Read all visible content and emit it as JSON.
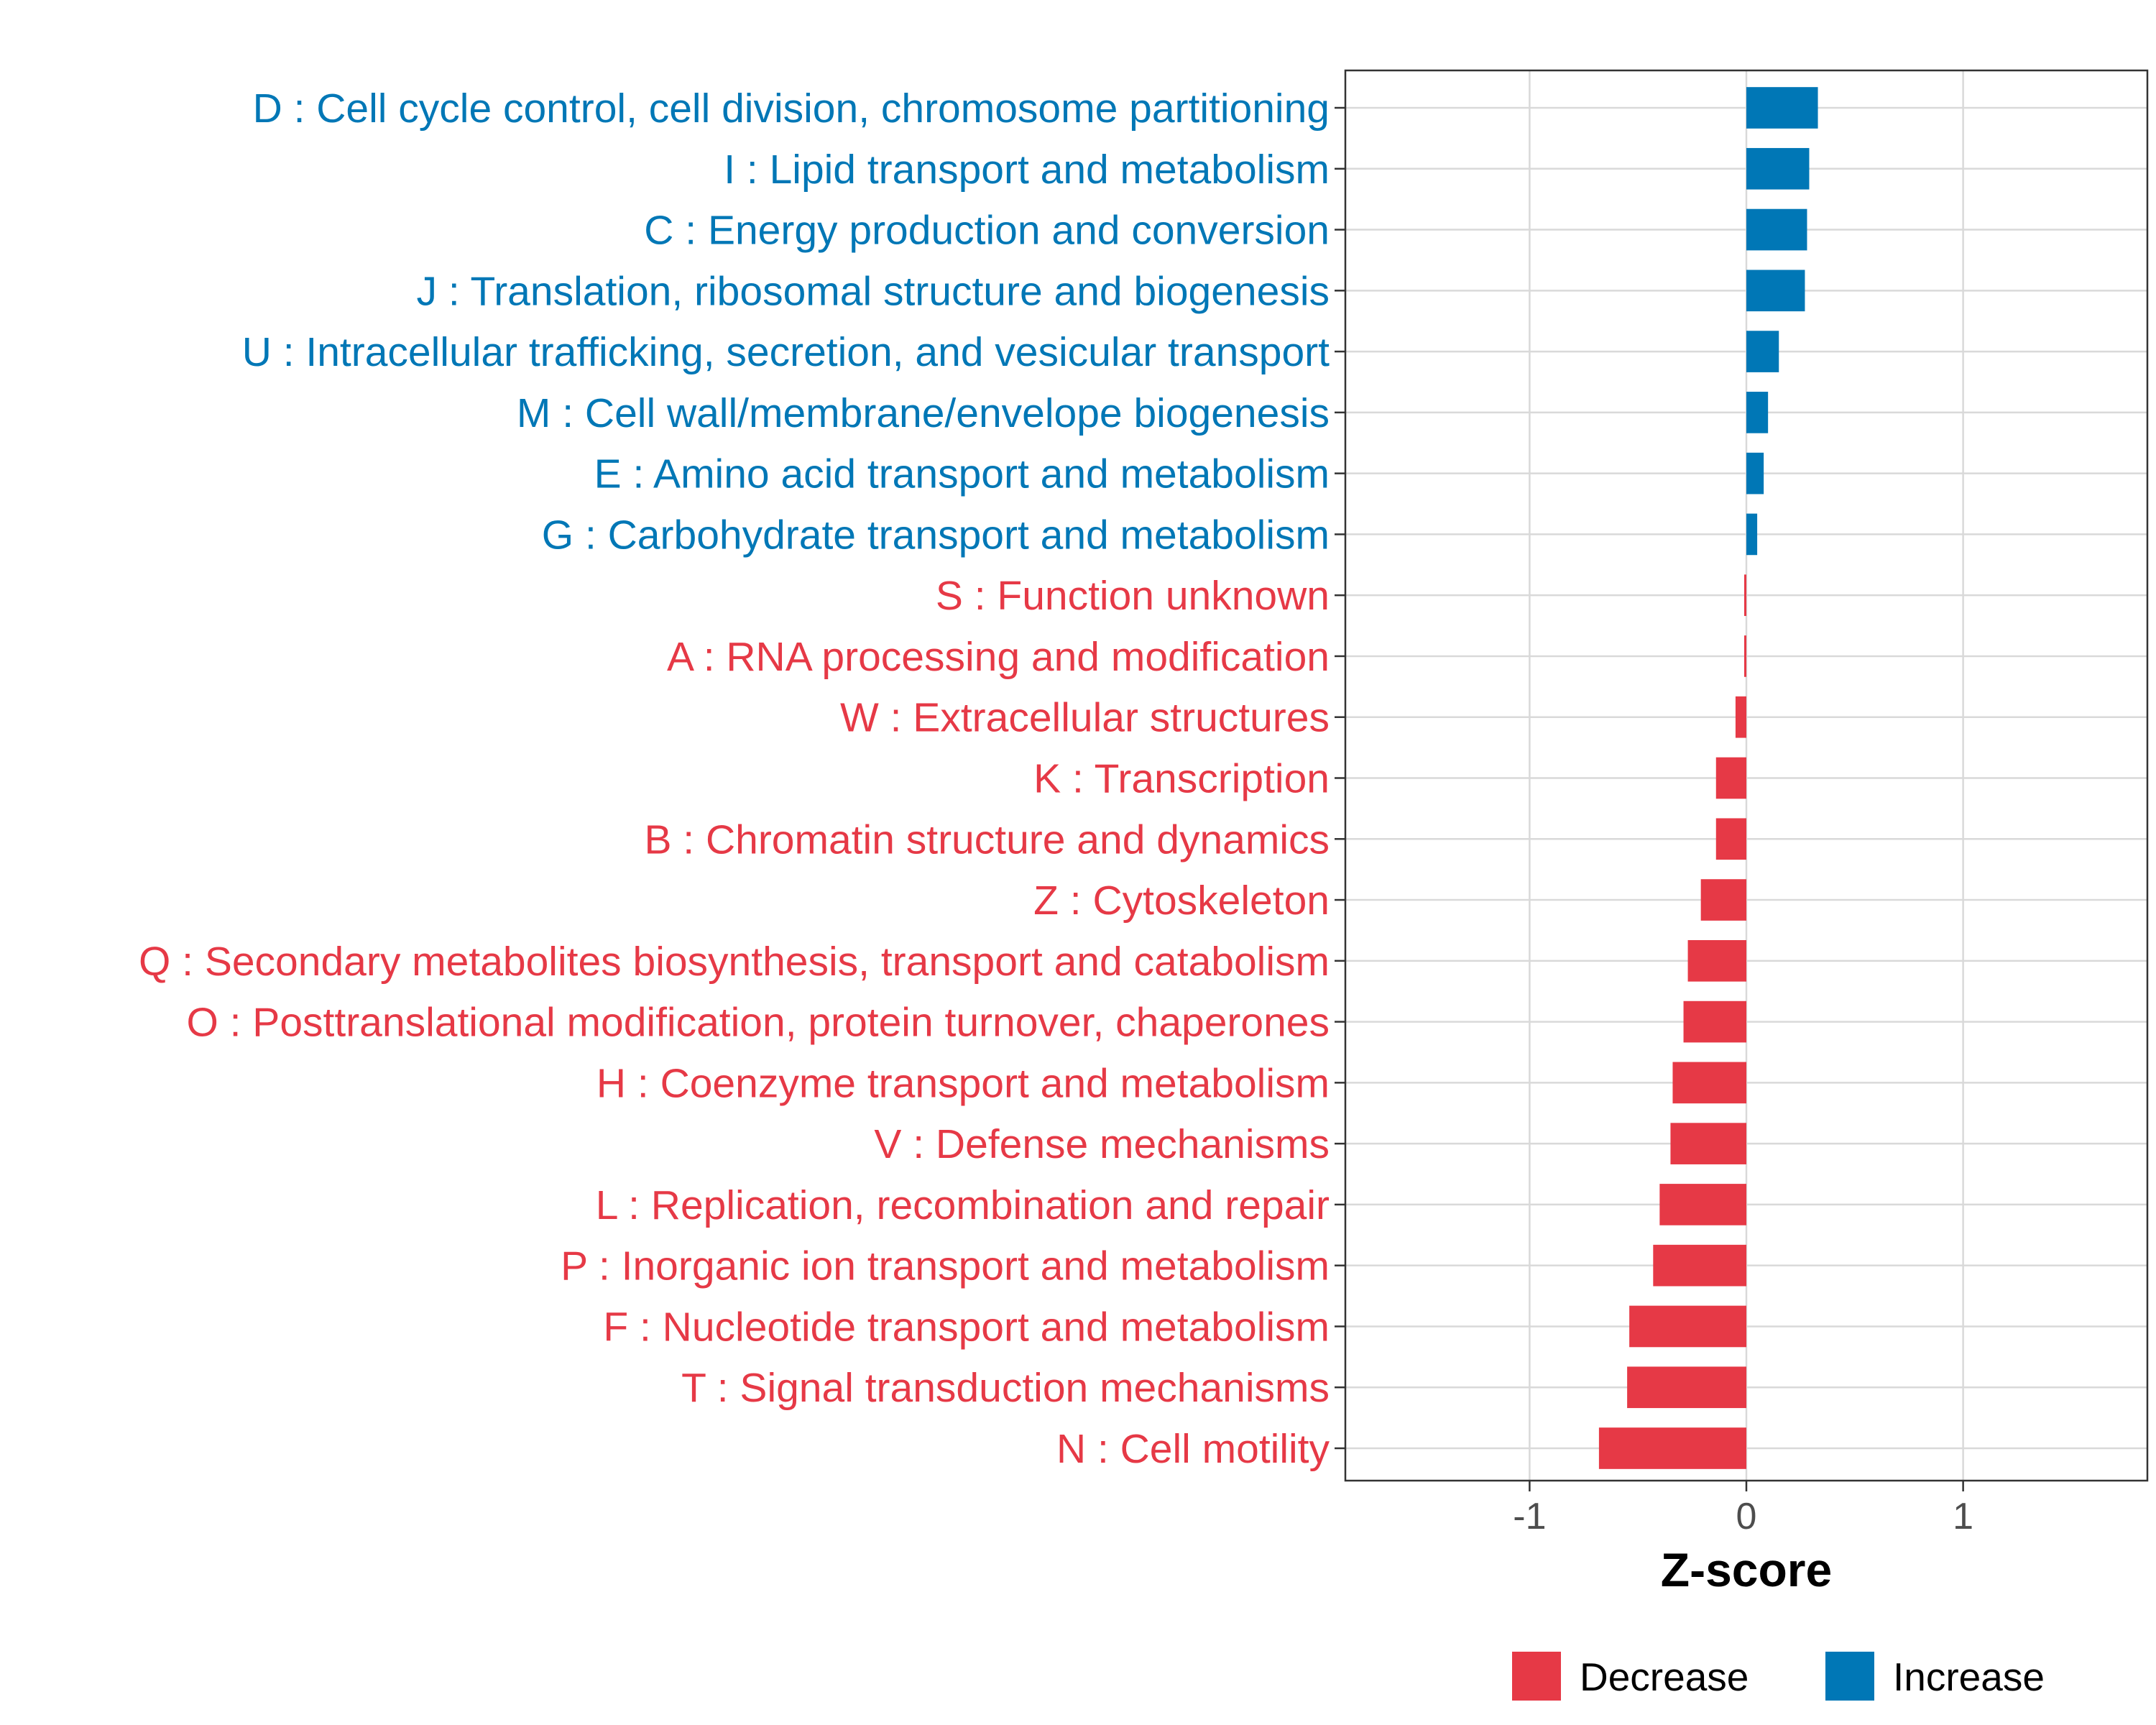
{
  "chart_data": {
    "type": "bar",
    "orientation": "horizontal",
    "title": "",
    "xlabel": "Z-score",
    "ylabel": "",
    "xlim": [
      -1.85,
      1.85
    ],
    "xticks": [
      -1,
      0,
      1
    ],
    "xtick_labels": [
      "-1",
      "0",
      "1"
    ],
    "grid": true,
    "legend_position": "bottom",
    "categories": [
      "D : Cell cycle control, cell division, chromosome partitioning",
      "I : Lipid transport and metabolism",
      "C : Energy production and conversion",
      "J : Translation, ribosomal structure and biogenesis",
      "U : Intracellular trafficking, secretion, and vesicular transport",
      "M : Cell wall/membrane/envelope biogenesis",
      "E : Amino acid transport and metabolism",
      "G : Carbohydrate transport and metabolism",
      "S : Function unknown",
      "A : RNA processing and modification",
      "W : Extracellular structures",
      "K : Transcription",
      "B : Chromatin structure and dynamics",
      "Z : Cytoskeleton",
      "Q : Secondary metabolites biosynthesis, transport and catabolism",
      "O : Posttranslational modification, protein turnover, chaperones",
      "H : Coenzyme transport and metabolism",
      "V : Defense mechanisms",
      "L : Replication, recombination and repair",
      "P : Inorganic ion transport and metabolism",
      "F : Nucleotide transport and metabolism",
      "T : Signal transduction mechanisms",
      "N : Cell motility"
    ],
    "values": [
      0.33,
      0.29,
      0.28,
      0.27,
      0.15,
      0.1,
      0.08,
      0.05,
      -0.01,
      -0.01,
      -0.05,
      -0.14,
      -0.14,
      -0.21,
      -0.27,
      -0.29,
      -0.34,
      -0.35,
      -0.4,
      -0.43,
      -0.54,
      -0.55,
      -0.68
    ],
    "groups": [
      "Increase",
      "Increase",
      "Increase",
      "Increase",
      "Increase",
      "Increase",
      "Increase",
      "Increase",
      "Decrease",
      "Decrease",
      "Decrease",
      "Decrease",
      "Decrease",
      "Decrease",
      "Decrease",
      "Decrease",
      "Decrease",
      "Decrease",
      "Decrease",
      "Decrease",
      "Decrease",
      "Decrease",
      "Decrease"
    ],
    "legend": [
      {
        "name": "Decrease",
        "color": "#e63946"
      },
      {
        "name": "Increase",
        "color": "#0077b6"
      }
    ]
  },
  "colors": {
    "increase": "#0077b6",
    "decrease": "#e63946",
    "grid": "#d9d9d9",
    "axis": "#333333"
  }
}
